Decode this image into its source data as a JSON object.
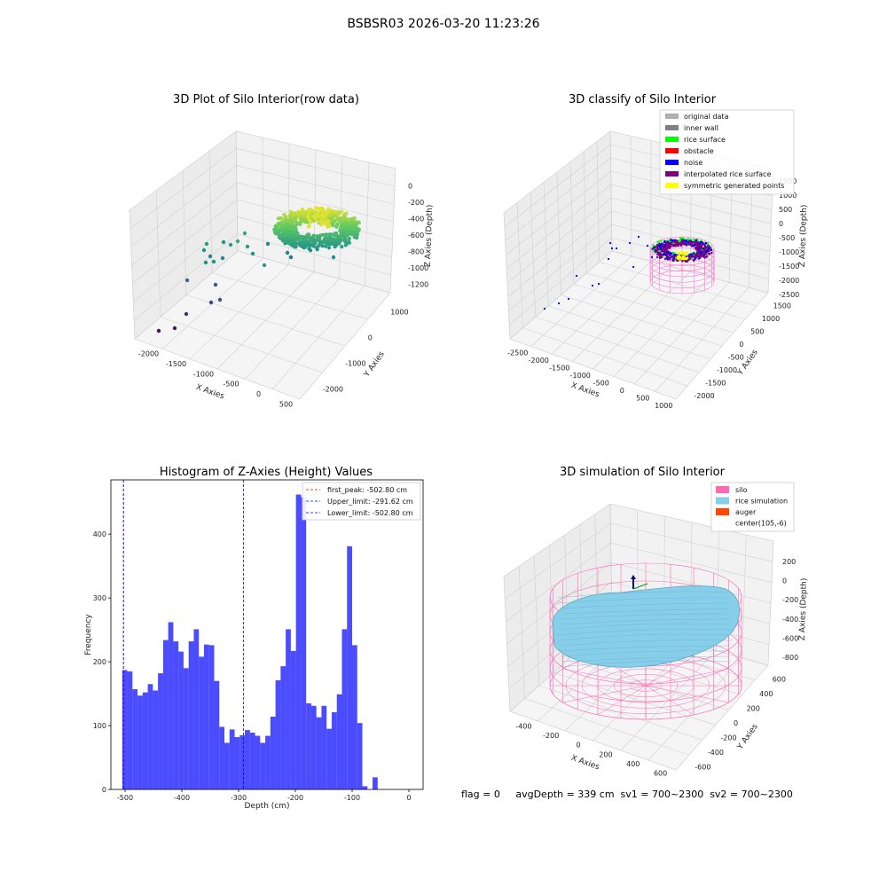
{
  "suptitle": "BSBSR03 2026-03-20 11:23:26",
  "footer": "flag = 0     avgDepth = 339 cm  sv1 = 700~2300  sv2 = 700~2300",
  "chart_data": [
    {
      "id": "raw",
      "type": "scatter",
      "title": "3D Plot of Silo Interior(row data)",
      "xlabel": "X Axies",
      "ylabel": "Y Axies",
      "zlabel": "Z Axies (Depth)",
      "x_ticks": [
        "-2000",
        "-1500",
        "-1000",
        "-500",
        "0",
        "500"
      ],
      "y_ticks": [
        "-2000",
        "-1000",
        "0",
        "1000"
      ],
      "z_ticks": [
        "0",
        "-200",
        "-400",
        "-600",
        "-800",
        "-1000",
        "-1200"
      ],
      "xlim": [
        -2200,
        600
      ],
      "ylim": [
        -2200,
        1500
      ],
      "zlim": [
        -1350,
        100
      ],
      "colormap": [
        "#440154",
        "#3b528b",
        "#21918c",
        "#5ec962",
        "#fde725"
      ]
    },
    {
      "id": "classify",
      "type": "scatter",
      "title": "3D classify of Silo Interior",
      "xlabel": "X Axies",
      "ylabel": "Y Axies",
      "zlabel": "Z Axies (Depth)",
      "x_ticks": [
        "-2500",
        "-2000",
        "-1500",
        "-1000",
        "-500",
        "0",
        "500",
        "1000"
      ],
      "y_ticks": [
        "-2000",
        "-1500",
        "-1000",
        "-500",
        "0",
        "500",
        "1000",
        "1500"
      ],
      "z_ticks": [
        "1500",
        "1000",
        "500",
        "0",
        "-500",
        "-1000",
        "-1500",
        "-2000",
        "-2500"
      ],
      "xlim": [
        -2700,
        1200
      ],
      "ylim": [
        -2200,
        1700
      ],
      "zlim": [
        -2600,
        1700
      ],
      "legend": [
        {
          "name": "original data",
          "color": "#b0b0b0"
        },
        {
          "name": "inner wall",
          "color": "#808080"
        },
        {
          "name": "rice surface",
          "color": "#00ff00"
        },
        {
          "name": "obstacle",
          "color": "#ff0000"
        },
        {
          "name": "noise",
          "color": "#0000ff"
        },
        {
          "name": "interpolated rice surface",
          "color": "#800080"
        },
        {
          "name": "symmetric generated points",
          "color": "#ffff00"
        }
      ],
      "legend_position": "top-right"
    },
    {
      "id": "hist",
      "type": "bar",
      "title": "Histogram of Z-Axies (Height) Values",
      "xlabel": "Depth (cm)",
      "ylabel": "Frequency",
      "x_ticks": [
        "-500",
        "-400",
        "-300",
        "-200",
        "-100",
        "0"
      ],
      "y_ticks": [
        "0",
        "100",
        "200",
        "300",
        "400"
      ],
      "xlim": [
        -525,
        25
      ],
      "ylim": [
        0,
        485
      ],
      "bin_start": -505,
      "bin_width": 9,
      "values": [
        187,
        185,
        157,
        147,
        152,
        165,
        155,
        182,
        234,
        262,
        232,
        216,
        190,
        232,
        251,
        208,
        227,
        226,
        170,
        98,
        73,
        94,
        82,
        85,
        93,
        89,
        84,
        73,
        84,
        114,
        171,
        193,
        251,
        217,
        462,
        458,
        135,
        131,
        113,
        131,
        95,
        121,
        149,
        251,
        381,
        226,
        104,
        5,
        0,
        19
      ],
      "bar_color": "#0000ff",
      "vlines": [
        {
          "name": "first_peak: -502.80 cm",
          "x": -502.8,
          "color": "#ff0000",
          "style": "dashed"
        },
        {
          "name": "Upper_limit: -291.62 cm",
          "x": -291.62,
          "color": "#0000ff",
          "style": "dashed"
        },
        {
          "name": "Lower_limit: -502.80 cm",
          "x": -502.8,
          "color": "#0000ff",
          "style": "dashed"
        }
      ],
      "legend_position": "top-right"
    },
    {
      "id": "sim",
      "type": "surface",
      "title": "3D simulation of Silo Interior",
      "xlabel": "X Axies",
      "ylabel": "Y Axies",
      "zlabel": "Z Axies (Depth)",
      "x_ticks": [
        "-400",
        "-200",
        "0",
        "200",
        "400",
        "600"
      ],
      "y_ticks": [
        "-600",
        "-400",
        "-200",
        "0",
        "200",
        "400",
        "600"
      ],
      "z_ticks": [
        "200",
        "0",
        "-200",
        "-400",
        "-600",
        "-800"
      ],
      "xlim": [
        -550,
        750
      ],
      "ylim": [
        -700,
        700
      ],
      "zlim": [
        -1000,
        400
      ],
      "legend": [
        {
          "name": "silo",
          "color": "#ff69b4"
        },
        {
          "name": "rice simulation",
          "color": "#87ceeb"
        },
        {
          "name": "auger",
          "color": "#ff4500"
        },
        {
          "name": "center(105,-6)",
          "color": "#ffffff"
        }
      ],
      "legend_position": "top-right"
    }
  ]
}
